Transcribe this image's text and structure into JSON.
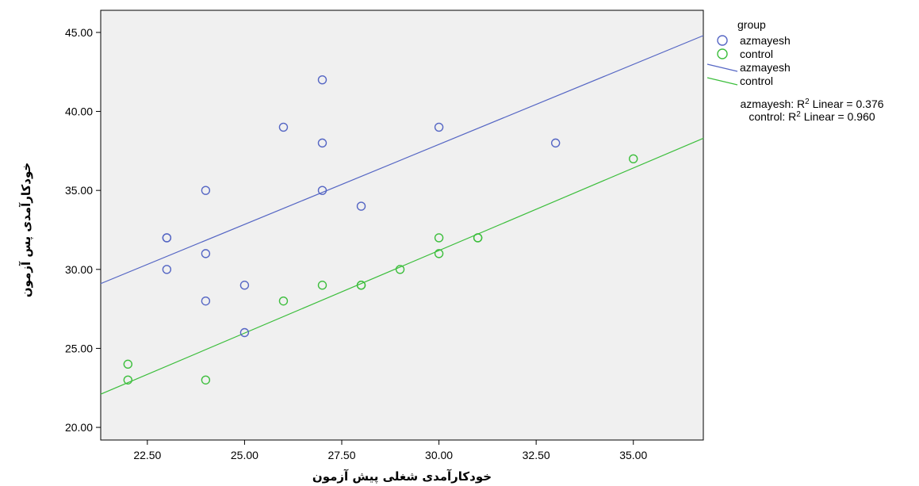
{
  "chart_data": {
    "type": "scatter",
    "title": "",
    "xlabel": "خودکارآمدی شغلی پیش آزمون",
    "ylabel": "خودکارآمدی پس آزمون",
    "xlim": [
      21.3,
      36.8
    ],
    "ylim": [
      19.2,
      46.4
    ],
    "x_ticks": [
      "22.50",
      "25.00",
      "27.50",
      "30.00",
      "32.50",
      "35.00"
    ],
    "y_ticks": [
      "20.00",
      "25.00",
      "30.00",
      "35.00",
      "40.00",
      "45.00"
    ],
    "grid": false,
    "legend_position": "right",
    "legend": {
      "title": "group",
      "items": [
        {
          "label": "azmayesh",
          "kind": "marker",
          "color": "#5566c4"
        },
        {
          "label": "control",
          "kind": "marker",
          "color": "#3cbe3c"
        },
        {
          "label": "azmayesh",
          "kind": "line",
          "color": "#5566c4"
        },
        {
          "label": "control",
          "kind": "line",
          "color": "#3cbe3c"
        }
      ]
    },
    "annotations": [
      {
        "text": "azmayesh: R",
        "sup": "2",
        "suffix": " Linear = 0.376"
      },
      {
        "text": "control: R",
        "sup": "2",
        "suffix": " Linear = 0.960"
      }
    ],
    "series": [
      {
        "name": "azmayesh",
        "color": "#5566c4",
        "points": [
          [
            23,
            32
          ],
          [
            23,
            32
          ],
          [
            23,
            30
          ],
          [
            24,
            35
          ],
          [
            24,
            31
          ],
          [
            24,
            28
          ],
          [
            25,
            29
          ],
          [
            25,
            26
          ],
          [
            26,
            39
          ],
          [
            27,
            42
          ],
          [
            27,
            38
          ],
          [
            27,
            35
          ],
          [
            28,
            34
          ],
          [
            30,
            39
          ],
          [
            33,
            38
          ]
        ],
        "fit": {
          "x": [
            21.3,
            36.8
          ],
          "y": [
            29.1,
            44.8
          ]
        }
      },
      {
        "name": "control",
        "color": "#3cbe3c",
        "points": [
          [
            22,
            24
          ],
          [
            22,
            23
          ],
          [
            24,
            23
          ],
          [
            26,
            28
          ],
          [
            27,
            29
          ],
          [
            28,
            29
          ],
          [
            28,
            29
          ],
          [
            29,
            30
          ],
          [
            30,
            32
          ],
          [
            30,
            31
          ],
          [
            31,
            32
          ],
          [
            31,
            32
          ],
          [
            35,
            37
          ]
        ],
        "fit": {
          "x": [
            21.3,
            36.8
          ],
          "y": [
            22.1,
            38.3
          ]
        }
      }
    ]
  }
}
